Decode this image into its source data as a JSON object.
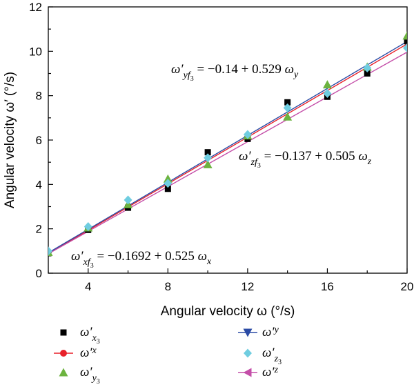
{
  "chart_data": {
    "type": "scatter",
    "xlabel": "Angular velocity ω (°/s)",
    "ylabel": "Angular velocity ω′ (°/s)",
    "xlim": [
      2,
      20
    ],
    "ylim": [
      0,
      12
    ],
    "xticks": [
      "4",
      "8",
      "12",
      "16",
      "20"
    ],
    "yticks": [
      "0",
      "2",
      "4",
      "6",
      "8",
      "10",
      "12"
    ],
    "grid": false,
    "legend_position": "bottom",
    "series": [
      {
        "name": "ω′x3",
        "kind": "points",
        "marker": "square",
        "color": "#000000",
        "x": [
          2,
          4,
          6,
          8,
          10,
          12,
          14,
          16,
          18,
          20
        ],
        "y": [
          0.9,
          1.95,
          2.95,
          3.8,
          5.45,
          6.05,
          7.7,
          7.95,
          9.0,
          10.45
        ]
      },
      {
        "name": "ω′x",
        "kind": "line",
        "marker": "circle",
        "color": "#e8212a",
        "intercept": -0.1692,
        "slope": 0.525,
        "x": [
          2,
          20
        ]
      },
      {
        "name": "ω′y3",
        "kind": "points",
        "marker": "triangle-up",
        "color": "#6cb33f",
        "x": [
          2,
          4,
          6,
          8,
          10,
          12,
          14,
          16,
          18,
          20
        ],
        "y": [
          0.95,
          2.05,
          3.1,
          4.25,
          4.9,
          6.2,
          7.05,
          8.5,
          9.3,
          10.7
        ]
      },
      {
        "name": "ω′y",
        "kind": "line",
        "marker": "triangle-down",
        "color": "#2b4ba5",
        "intercept": -0.14,
        "slope": 0.529,
        "x": [
          2,
          20
        ]
      },
      {
        "name": "ω′z3",
        "kind": "points",
        "marker": "diamond",
        "color": "#6fcde0",
        "x": [
          2,
          4,
          6,
          8,
          10,
          12,
          14,
          16,
          18,
          20
        ],
        "y": [
          1.0,
          2.1,
          3.3,
          4.05,
          5.2,
          6.25,
          7.45,
          8.1,
          9.25,
          10.15
        ]
      },
      {
        "name": "ω′z",
        "kind": "line",
        "marker": "triangle-left",
        "color": "#c44ea8",
        "intercept": -0.137,
        "slope": 0.505,
        "x": [
          2,
          20
        ]
      }
    ],
    "annotations": [
      {
        "id": "eq-y",
        "base": "ω′",
        "sub": "yf",
        "subsub": "3",
        "rhs": " = −0.14 + 0.529 ",
        "var": "ω",
        "varsub": "y"
      },
      {
        "id": "eq-z",
        "base": "ω′",
        "sub": "zf",
        "subsub": "3",
        "rhs": " = −0.137 + 0.505 ",
        "var": "ω",
        "varsub": "z"
      },
      {
        "id": "eq-x",
        "base": "ω′",
        "sub": "xf",
        "subsub": "3",
        "rhs": " = −0.1692 + 0.525 ",
        "var": "ω",
        "varsub": "x"
      }
    ],
    "legend": [
      {
        "series": 0,
        "base": "ω′",
        "sub": "x",
        "subsub": "3"
      },
      {
        "series": 1,
        "base": "ω′",
        "sub": "x",
        "subsub": ""
      },
      {
        "series": 2,
        "base": "ω′",
        "sub": "y",
        "subsub": "3"
      },
      {
        "series": 3,
        "base": "ω′",
        "sub": "y",
        "subsub": ""
      },
      {
        "series": 4,
        "base": "ω′",
        "sub": "z",
        "subsub": "3"
      },
      {
        "series": 5,
        "base": "ω′",
        "sub": "z",
        "subsub": ""
      }
    ]
  }
}
